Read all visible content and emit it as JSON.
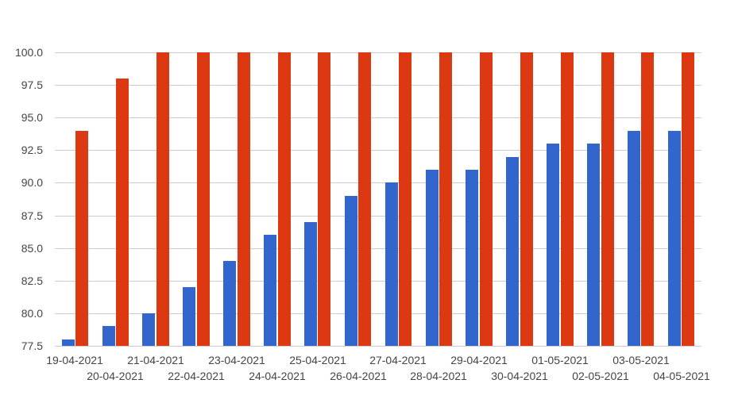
{
  "chart_data": {
    "type": "bar",
    "categories": [
      "19-04-2021",
      "20-04-2021",
      "21-04-2021",
      "22-04-2021",
      "23-04-2021",
      "24-04-2021",
      "25-04-2021",
      "26-04-2021",
      "27-04-2021",
      "28-04-2021",
      "29-04-2021",
      "30-04-2021",
      "01-05-2021",
      "02-05-2021",
      "03-05-2021",
      "04-05-2021"
    ],
    "series": [
      {
        "color": "#3366cc",
        "values": [
          78,
          79,
          80,
          82,
          84,
          86,
          87,
          89,
          90,
          91,
          91,
          92,
          93,
          93,
          94,
          94
        ]
      },
      {
        "color": "#dc3912",
        "values": [
          94,
          98,
          100,
          100,
          100,
          100,
          100,
          100,
          100,
          100,
          100,
          100,
          100,
          100,
          100,
          100
        ]
      }
    ],
    "ylim": [
      77.5,
      100.0
    ],
    "ytick_labels": [
      "77.5",
      "80.0",
      "82.5",
      "85.0",
      "87.5",
      "90.0",
      "92.5",
      "95.0",
      "97.5",
      "100.0"
    ],
    "grid": "horizontal",
    "legend": "none",
    "x_labels_staggered": true,
    "background_color": "#ffffff",
    "gridline_color": "#cccccc",
    "axis_text_color": "#444444"
  }
}
